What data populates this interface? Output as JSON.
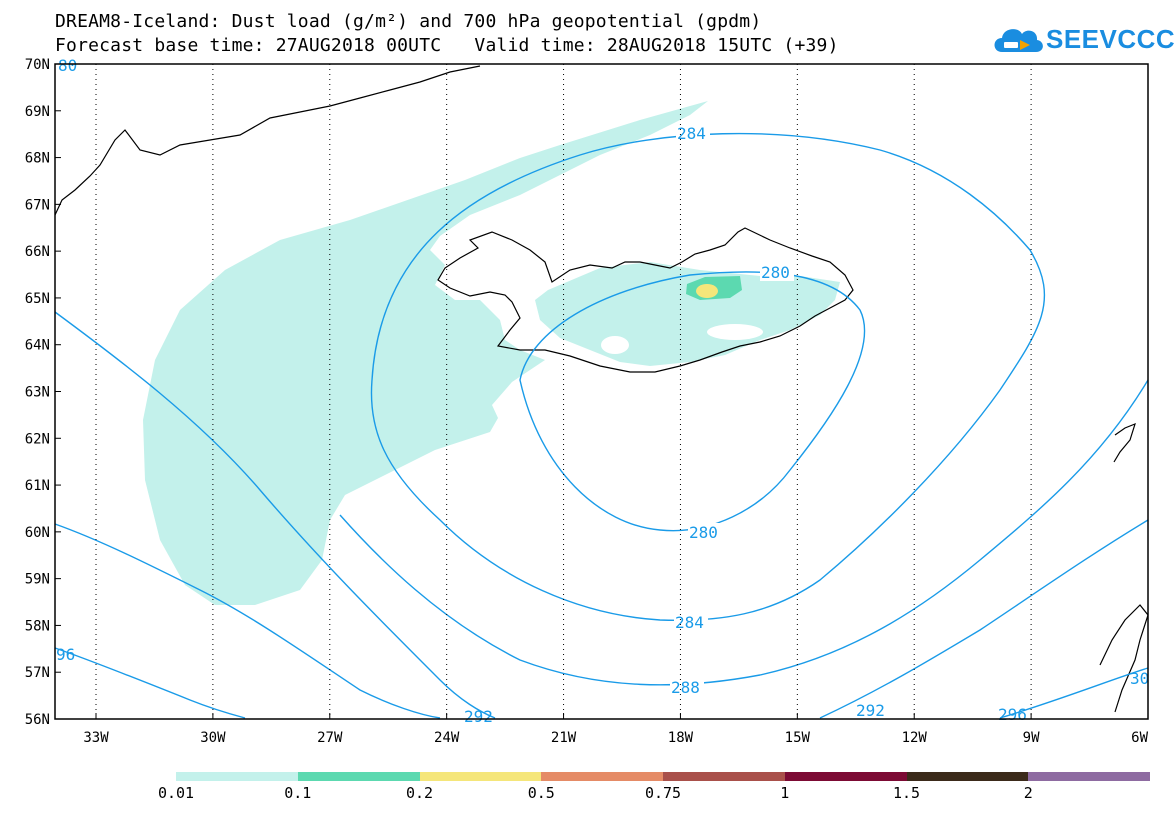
{
  "header": {
    "title_line1": "DREAM8-Iceland: Dust load (g/m²) and 700 hPa geopotential (gpdm)",
    "title_line2": "Forecast base time: 27AUG2018 00UTC   Valid time: 28AUG2018 15UTC (+39)"
  },
  "logo": {
    "text": "SEEVCCC",
    "icon": "cloud-icon"
  },
  "map": {
    "lat_labels": [
      "70N",
      "69N",
      "68N",
      "67N",
      "66N",
      "65N",
      "64N",
      "63N",
      "62N",
      "61N",
      "60N",
      "59N",
      "58N",
      "57N",
      "56N"
    ],
    "lon_labels": [
      "33W",
      "30W",
      "27W",
      "24W",
      "21W",
      "18W",
      "15W",
      "12W",
      "9W",
      "6W"
    ],
    "contour_color": "#1a9be8",
    "contour_labels": {
      "c280_top": "280",
      "c280_bottom": "280",
      "c284_top": "284",
      "c284_bottom": "284",
      "c288": "288",
      "c292_left": "292",
      "c292_right": "292",
      "c296_left": "96",
      "c296_right": "296",
      "c_topleft": "80",
      "c_rightedge": "30"
    }
  },
  "colorbar": {
    "labels": [
      "0.01",
      "0.1",
      "0.2",
      "0.5",
      "0.75",
      "1",
      "1.5",
      "2"
    ],
    "colors": [
      "#c3f1eb",
      "#5cd9b0",
      "#f5e67a",
      "#e58b66",
      "#a9504a",
      "#7c0a34",
      "#3b2a1a",
      "#8e6ba1"
    ]
  }
}
